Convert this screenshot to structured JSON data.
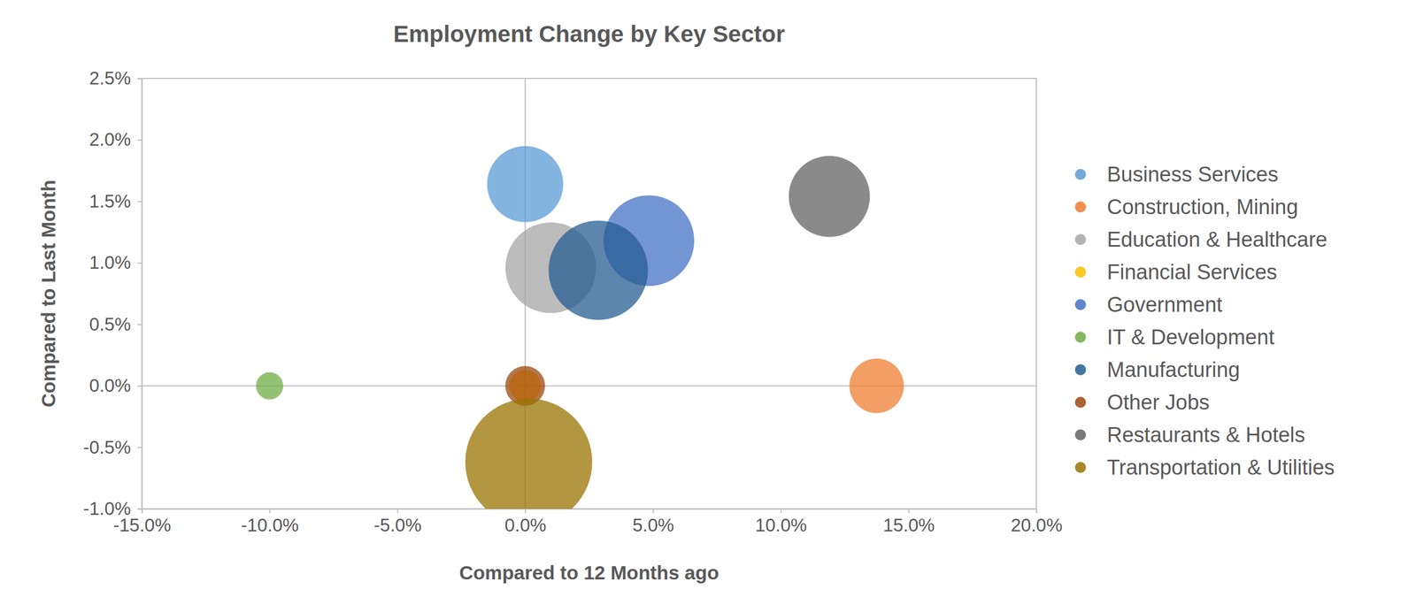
{
  "chart_data": {
    "type": "bubble",
    "title": "Employment Change by Key Sector",
    "x_label": "Compared to 12 Months ago",
    "y_label": "Compared to Last Month",
    "xlim": [
      -15,
      20
    ],
    "xticks": [
      {
        "value": -15,
        "label": "-15.0%"
      },
      {
        "value": -10,
        "label": "-10.0%"
      },
      {
        "value": -5,
        "label": "-5.0%"
      },
      {
        "value": 0,
        "label": "0.0%"
      },
      {
        "value": 5,
        "label": "5.0%"
      },
      {
        "value": 10,
        "label": "10.0%"
      },
      {
        "value": 15,
        "label": "15.0%"
      },
      {
        "value": 20,
        "label": "20.0%"
      }
    ],
    "ylim": [
      -1,
      2.5
    ],
    "yticks": [
      {
        "value": -1,
        "label": "-1.0%"
      },
      {
        "value": -0.5,
        "label": "-0.5%"
      },
      {
        "value": 0,
        "label": "0.0%"
      },
      {
        "value": 0.5,
        "label": "0.5%"
      },
      {
        "value": 1,
        "label": "1.0%"
      },
      {
        "value": 1.5,
        "label": "1.5%"
      },
      {
        "value": 2,
        "label": "2.0%"
      },
      {
        "value": 2.5,
        "label": "2.5%"
      }
    ],
    "grid": false,
    "legend": "right",
    "series": [
      {
        "name": "Business Services",
        "color": "#5b9bd5",
        "x": [
          0.0
        ],
        "values": [
          1.64
        ],
        "size": [
          17.6
        ]
      },
      {
        "name": "Construction, Mining",
        "color": "#ed7d31",
        "x": [
          13.75
        ],
        "values": [
          0.0
        ],
        "size": [
          9
        ]
      },
      {
        "name": "Education & Healthcare",
        "color": "#a5a5a5",
        "x": [
          1.0
        ],
        "values": [
          0.96
        ],
        "size": [
          25
        ]
      },
      {
        "name": "Financial Services",
        "color": "#ffc000",
        "x": [
          0.0
        ],
        "values": [
          0.0
        ],
        "size": [
          3
        ]
      },
      {
        "name": "Government",
        "color": "#4472c4",
        "x": [
          4.84
        ],
        "values": [
          1.18
        ],
        "size": [
          25
        ]
      },
      {
        "name": "IT & Development",
        "color": "#70ad47",
        "x": [
          -10.0
        ],
        "values": [
          0.0
        ],
        "size": [
          2.25
        ]
      },
      {
        "name": "Manufacturing",
        "color": "#255e91",
        "x": [
          2.86
        ],
        "values": [
          0.94
        ],
        "size": [
          30
        ]
      },
      {
        "name": "Other Jobs",
        "color": "#9e480e",
        "x": [
          0.0
        ],
        "values": [
          0.0
        ],
        "size": [
          4.8
        ]
      },
      {
        "name": "Restaurants & Hotels",
        "color": "#636363",
        "x": [
          11.9
        ],
        "values": [
          1.54
        ],
        "size": [
          20
        ]
      },
      {
        "name": "Transportation & Utilities",
        "color": "#997300",
        "x": [
          0.14
        ],
        "values": [
          -0.62
        ],
        "size": [
          49
        ]
      }
    ]
  }
}
